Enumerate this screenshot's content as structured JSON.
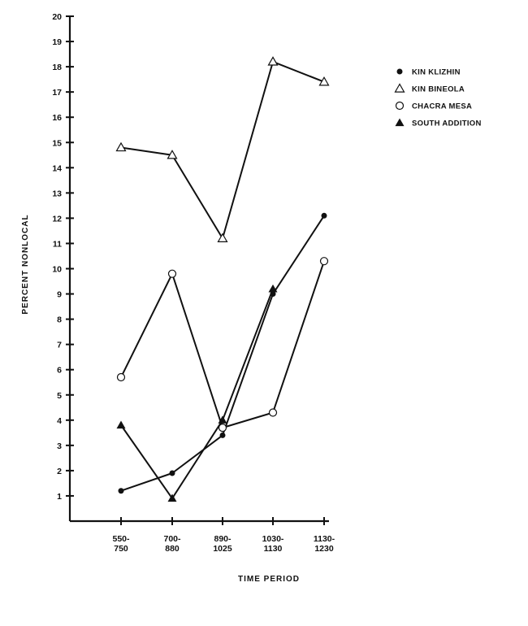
{
  "chart_data": {
    "type": "line",
    "title": "",
    "xlabel": "TIME PERIOD",
    "ylabel": "PERCENT NONLOCAL",
    "ylim": [
      0,
      20
    ],
    "yticks": [
      "1",
      "2",
      "3",
      "4",
      "5",
      "6",
      "7",
      "8",
      "9",
      "10",
      "11",
      "12",
      "13",
      "14",
      "15",
      "16",
      "17",
      "18",
      "19",
      "20"
    ],
    "categories": [
      [
        "550-",
        "750"
      ],
      [
        "700-",
        "880"
      ],
      [
        "890-",
        "1025"
      ],
      [
        "1030-",
        "1130"
      ],
      [
        "1130-",
        "1230"
      ]
    ],
    "series": [
      {
        "name": "KIN KLIZHIN",
        "marker": "filled-circle",
        "values": [
          1.2,
          1.9,
          3.4,
          9.0,
          12.1
        ]
      },
      {
        "name": "KIN BINEOLA",
        "marker": "open-triangle",
        "values": [
          14.8,
          14.5,
          11.2,
          18.2,
          17.4
        ]
      },
      {
        "name": "CHACRA MESA",
        "marker": "open-circle",
        "values": [
          5.7,
          9.8,
          3.7,
          4.3,
          10.3
        ]
      },
      {
        "name": "SOUTH ADDITION",
        "marker": "filled-triangle",
        "values": [
          3.8,
          0.9,
          4.0,
          9.2,
          null
        ]
      }
    ],
    "legend_position": "top-right",
    "grid": false,
    "colors": {
      "ink": "#111111",
      "background": "#ffffff"
    }
  }
}
